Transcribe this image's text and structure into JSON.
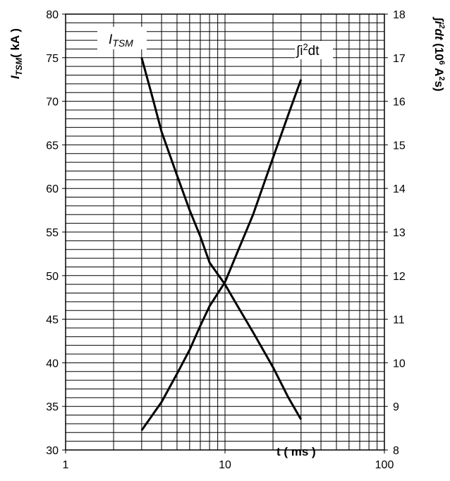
{
  "chart_data": {
    "type": "line",
    "x_scale": "log",
    "xlim": [
      1,
      100
    ],
    "ylim_left": [
      30,
      80
    ],
    "ylim_right": [
      8,
      18
    ],
    "x_ticks": [
      "1",
      "10",
      "100"
    ],
    "y_left_ticks": [
      "30",
      "35",
      "40",
      "45",
      "50",
      "55",
      "60",
      "65",
      "70",
      "75",
      "80"
    ],
    "y_right_ticks": [
      "8",
      "9",
      "10",
      "11",
      "12",
      "13",
      "14",
      "15",
      "16",
      "17",
      "18"
    ],
    "xlabel": "t ( ms )",
    "ylabel_left_main": "I",
    "ylabel_left_sub": "TSM",
    "ylabel_left_rest": "( kA )",
    "ylabel_right_integral": "∫",
    "ylabel_right_main": "i",
    "ylabel_right_sup": "2",
    "ylabel_right_mid": "dt",
    "ylabel_right_units_a": " (10",
    "ylabel_right_units_sup": "6",
    "ylabel_right_units_b": " A",
    "ylabel_right_units_sup2": "2",
    "ylabel_right_units_c": "s)",
    "grid": true,
    "series": [
      {
        "name_main": "I",
        "name_sub": "TSM",
        "axis": "left",
        "x": [
          3,
          3.5,
          4,
          5,
          6,
          7,
          8,
          10,
          12,
          15,
          20,
          25,
          30
        ],
        "y": [
          75,
          70.5,
          66.5,
          61.5,
          57.5,
          54.5,
          51.5,
          49,
          46.5,
          43.5,
          39.5,
          36,
          33.5
        ]
      },
      {
        "name_main": "∫i",
        "name_sup": "2",
        "name_rest": "dt",
        "axis": "right",
        "x": [
          3,
          3.5,
          4,
          5,
          6,
          7,
          8,
          10,
          12,
          15,
          20,
          25,
          30
        ],
        "y": [
          8.45,
          8.8,
          9.1,
          9.75,
          10.3,
          10.85,
          11.3,
          11.85,
          12.55,
          13.4,
          14.7,
          15.7,
          16.5
        ]
      }
    ]
  }
}
